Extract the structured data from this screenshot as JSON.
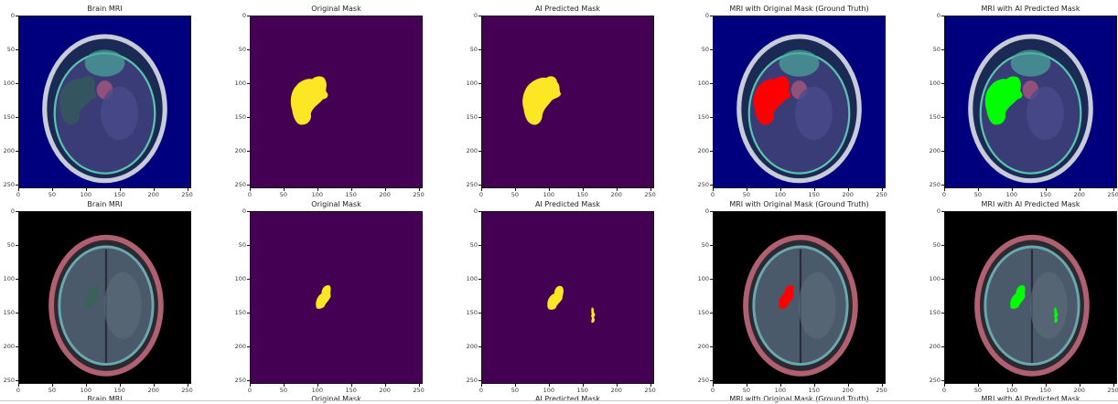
{
  "colors": {
    "mask_bg": "#440154",
    "mask_fg": "#fde725",
    "mri_bg_row1": "#00007f",
    "mri_bg_row2": "#000000",
    "ground_truth": "#ff0000",
    "predicted": "#00ff00"
  },
  "chart_data": [
    {
      "type": "image",
      "row": 1,
      "title": "Brain MRI",
      "content": "mri",
      "xlim": [
        0,
        256
      ],
      "ylim": [
        256,
        0
      ],
      "xticks": [
        0,
        50,
        100,
        150,
        200,
        250
      ],
      "yticks": [
        0,
        50,
        100,
        150,
        200,
        250
      ]
    },
    {
      "type": "image",
      "row": 1,
      "title": "Original Mask",
      "content": "mask",
      "xlim": [
        0,
        256
      ],
      "ylim": [
        256,
        0
      ],
      "xticks": [
        0,
        50,
        100,
        150,
        200,
        250
      ],
      "yticks": [
        0,
        50,
        100,
        150,
        200,
        250
      ]
    },
    {
      "type": "image",
      "row": 1,
      "title": "AI Predicted Mask",
      "content": "mask",
      "xlim": [
        0,
        256
      ],
      "ylim": [
        256,
        0
      ],
      "xticks": [
        0,
        50,
        100,
        150,
        200,
        250
      ],
      "yticks": [
        0,
        50,
        100,
        150,
        200,
        250
      ]
    },
    {
      "type": "image",
      "row": 1,
      "title": "MRI with Original Mask (Ground Truth)",
      "content": "overlay-red",
      "xlim": [
        0,
        256
      ],
      "ylim": [
        256,
        0
      ],
      "xticks": [
        0,
        50,
        100,
        150,
        200,
        250
      ],
      "yticks": [
        0,
        50,
        100,
        150,
        200,
        250
      ]
    },
    {
      "type": "image",
      "row": 1,
      "title": "MRI with AI Predicted Mask",
      "content": "overlay-green",
      "xlim": [
        0,
        256
      ],
      "ylim": [
        256,
        0
      ],
      "xticks": [
        0,
        50,
        100,
        150,
        200,
        250
      ],
      "yticks": [
        0,
        50,
        100,
        150,
        200,
        250
      ]
    },
    {
      "type": "image",
      "row": 2,
      "title": "Brain MRI",
      "content": "mri",
      "xlim": [
        0,
        256
      ],
      "ylim": [
        256,
        0
      ],
      "xticks": [
        0,
        50,
        100,
        150,
        200,
        250
      ],
      "yticks": [
        0,
        50,
        100,
        150,
        200,
        250
      ]
    },
    {
      "type": "image",
      "row": 2,
      "title": "Original Mask",
      "content": "mask",
      "xlim": [
        0,
        256
      ],
      "ylim": [
        256,
        0
      ],
      "xticks": [
        0,
        50,
        100,
        150,
        200,
        250
      ],
      "yticks": [
        0,
        50,
        100,
        150,
        200,
        250
      ]
    },
    {
      "type": "image",
      "row": 2,
      "title": "AI Predicted Mask",
      "content": "mask",
      "xlim": [
        0,
        256
      ],
      "ylim": [
        256,
        0
      ],
      "xticks": [
        0,
        50,
        100,
        150,
        200,
        250
      ],
      "yticks": [
        0,
        50,
        100,
        150,
        200,
        250
      ]
    },
    {
      "type": "image",
      "row": 2,
      "title": "MRI with Original Mask (Ground Truth)",
      "content": "overlay-red",
      "xlim": [
        0,
        256
      ],
      "ylim": [
        256,
        0
      ],
      "xticks": [
        0,
        50,
        100,
        150,
        200,
        250
      ],
      "yticks": [
        0,
        50,
        100,
        150,
        200,
        250
      ]
    },
    {
      "type": "image",
      "row": 2,
      "title": "MRI with AI Predicted Mask",
      "content": "overlay-green",
      "xlim": [
        0,
        256
      ],
      "ylim": [
        256,
        0
      ],
      "xticks": [
        0,
        50,
        100,
        150,
        200,
        250
      ],
      "yticks": [
        0,
        50,
        100,
        150,
        200,
        250
      ]
    }
  ],
  "partial_row_titles": [
    "Brain MRI",
    "Original Mask",
    "AI Predicted Mask",
    "MRI with Original Mask (Ground Truth)",
    "MRI with AI Predicted Mask"
  ]
}
